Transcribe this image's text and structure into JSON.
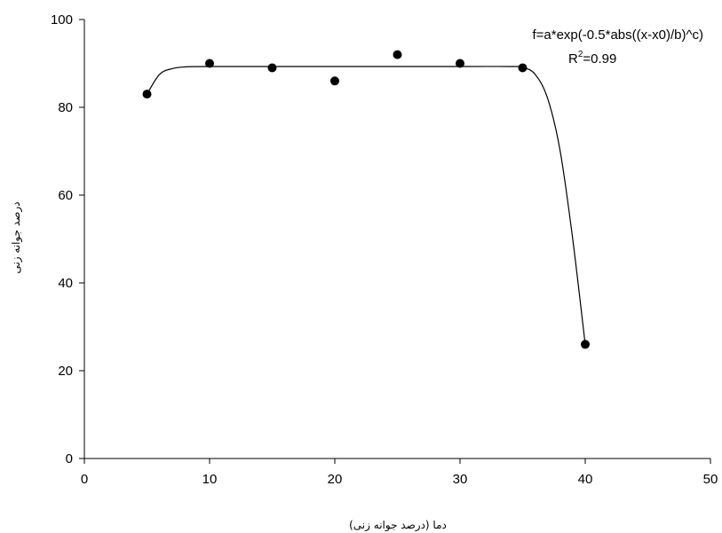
{
  "chart_data": {
    "type": "scatter",
    "xlabel": "دما (درصد جوانه زنی)",
    "ylabel": "درصد جوانه زنی",
    "xlim": [
      0,
      50
    ],
    "ylim": [
      0,
      100
    ],
    "xticks": [
      0,
      10,
      20,
      30,
      40,
      50
    ],
    "yticks": [
      0,
      20,
      40,
      60,
      80,
      100
    ],
    "grid": false,
    "points": [
      {
        "x": 5,
        "y": 83
      },
      {
        "x": 10,
        "y": 90
      },
      {
        "x": 15,
        "y": 89
      },
      {
        "x": 20,
        "y": 86
      },
      {
        "x": 25,
        "y": 92
      },
      {
        "x": 30,
        "y": 90
      },
      {
        "x": 35,
        "y": 89
      },
      {
        "x": 40,
        "y": 26
      }
    ],
    "fit": {
      "equation": "f=a*exp(-0.5*abs((x-x0)/b)^c)",
      "r2_label": "R",
      "r2_sup": "2",
      "r2_value": "=0.99",
      "curve": [
        {
          "x": 5,
          "y": 83
        },
        {
          "x": 6,
          "y": 87.5
        },
        {
          "x": 7,
          "y": 88.8
        },
        {
          "x": 8,
          "y": 89.2
        },
        {
          "x": 10,
          "y": 89.3
        },
        {
          "x": 20,
          "y": 89.3
        },
        {
          "x": 30,
          "y": 89.3
        },
        {
          "x": 34,
          "y": 89.3
        },
        {
          "x": 35,
          "y": 89.1
        },
        {
          "x": 36,
          "y": 87.5
        },
        {
          "x": 37,
          "y": 82
        },
        {
          "x": 38,
          "y": 70
        },
        {
          "x": 39,
          "y": 50
        },
        {
          "x": 40,
          "y": 26
        }
      ]
    }
  }
}
